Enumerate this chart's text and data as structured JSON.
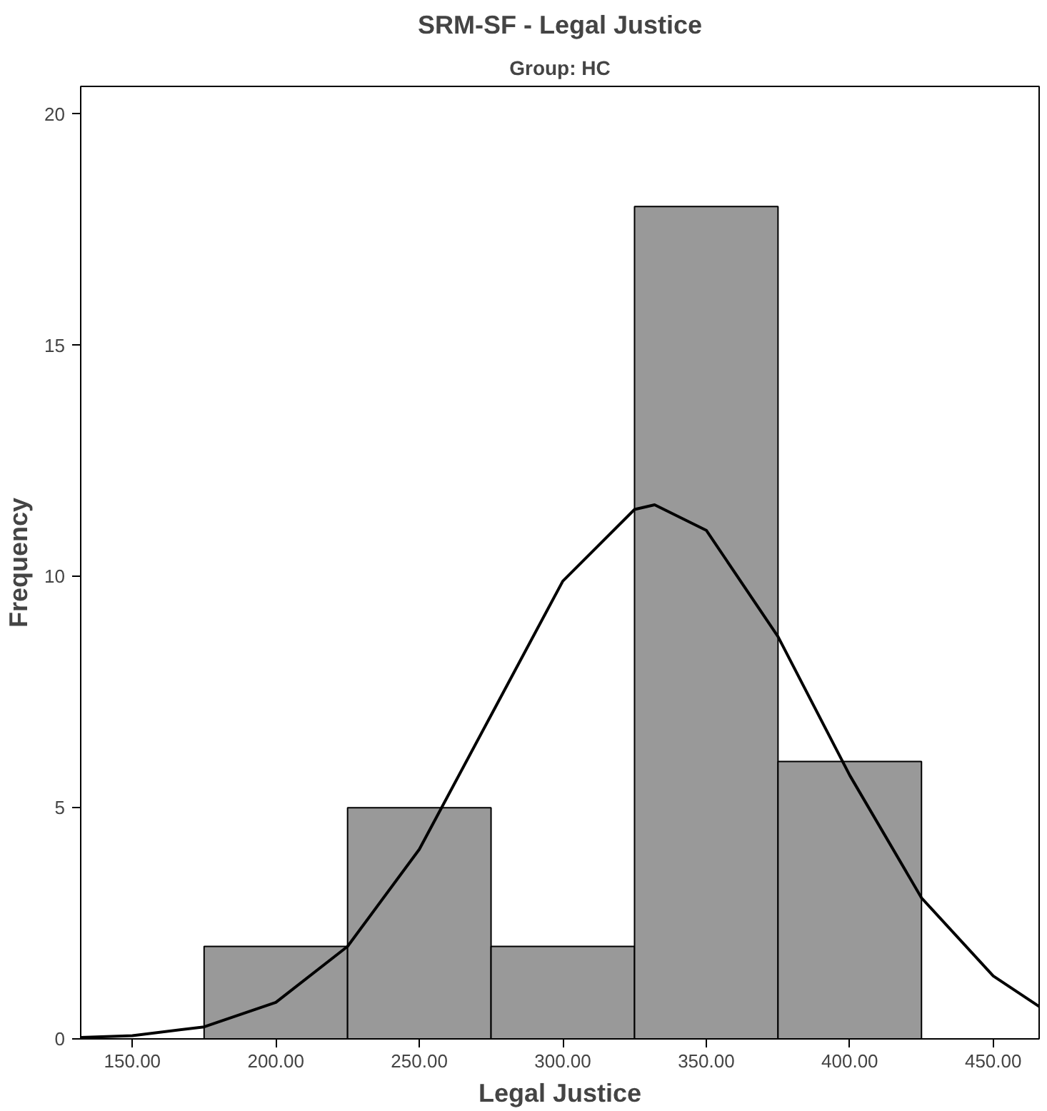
{
  "chart_data": {
    "type": "histogram",
    "title": "SRM-SF - Legal Justice",
    "subtitle": "Group: HC",
    "xlabel": "Legal Justice",
    "ylabel": "Frequency",
    "bins": [
      175,
      225,
      275,
      325,
      375,
      425
    ],
    "values": [
      2,
      5,
      2,
      18,
      6
    ],
    "color": "#999999",
    "series": [
      {
        "type": "line",
        "color": "#000000",
        "x": [
          132,
          150,
          175,
          200,
          225,
          250,
          275,
          300,
          325,
          332,
          350,
          375,
          400,
          425,
          450,
          466
        ],
        "values": [
          0.03,
          0.07,
          0.26,
          0.79,
          2.0,
          4.1,
          7.0,
          9.9,
          11.45,
          11.55,
          11.0,
          8.7,
          5.7,
          3.05,
          1.36,
          0.7
        ]
      }
    ],
    "xlim": [
      132,
      466
    ],
    "ylim": [
      0,
      20.6
    ],
    "xticks": [
      {
        "value": 150,
        "label": "150.00"
      },
      {
        "value": 200,
        "label": "200.00"
      },
      {
        "value": 250,
        "label": "250.00"
      },
      {
        "value": 300,
        "label": "300.00"
      },
      {
        "value": 350,
        "label": "350.00"
      },
      {
        "value": 400,
        "label": "400.00"
      },
      {
        "value": 450,
        "label": "450.00"
      }
    ],
    "yticks": [
      0,
      5,
      10,
      15,
      20
    ],
    "grid": false,
    "marker": "none",
    "line_style": "solid"
  }
}
